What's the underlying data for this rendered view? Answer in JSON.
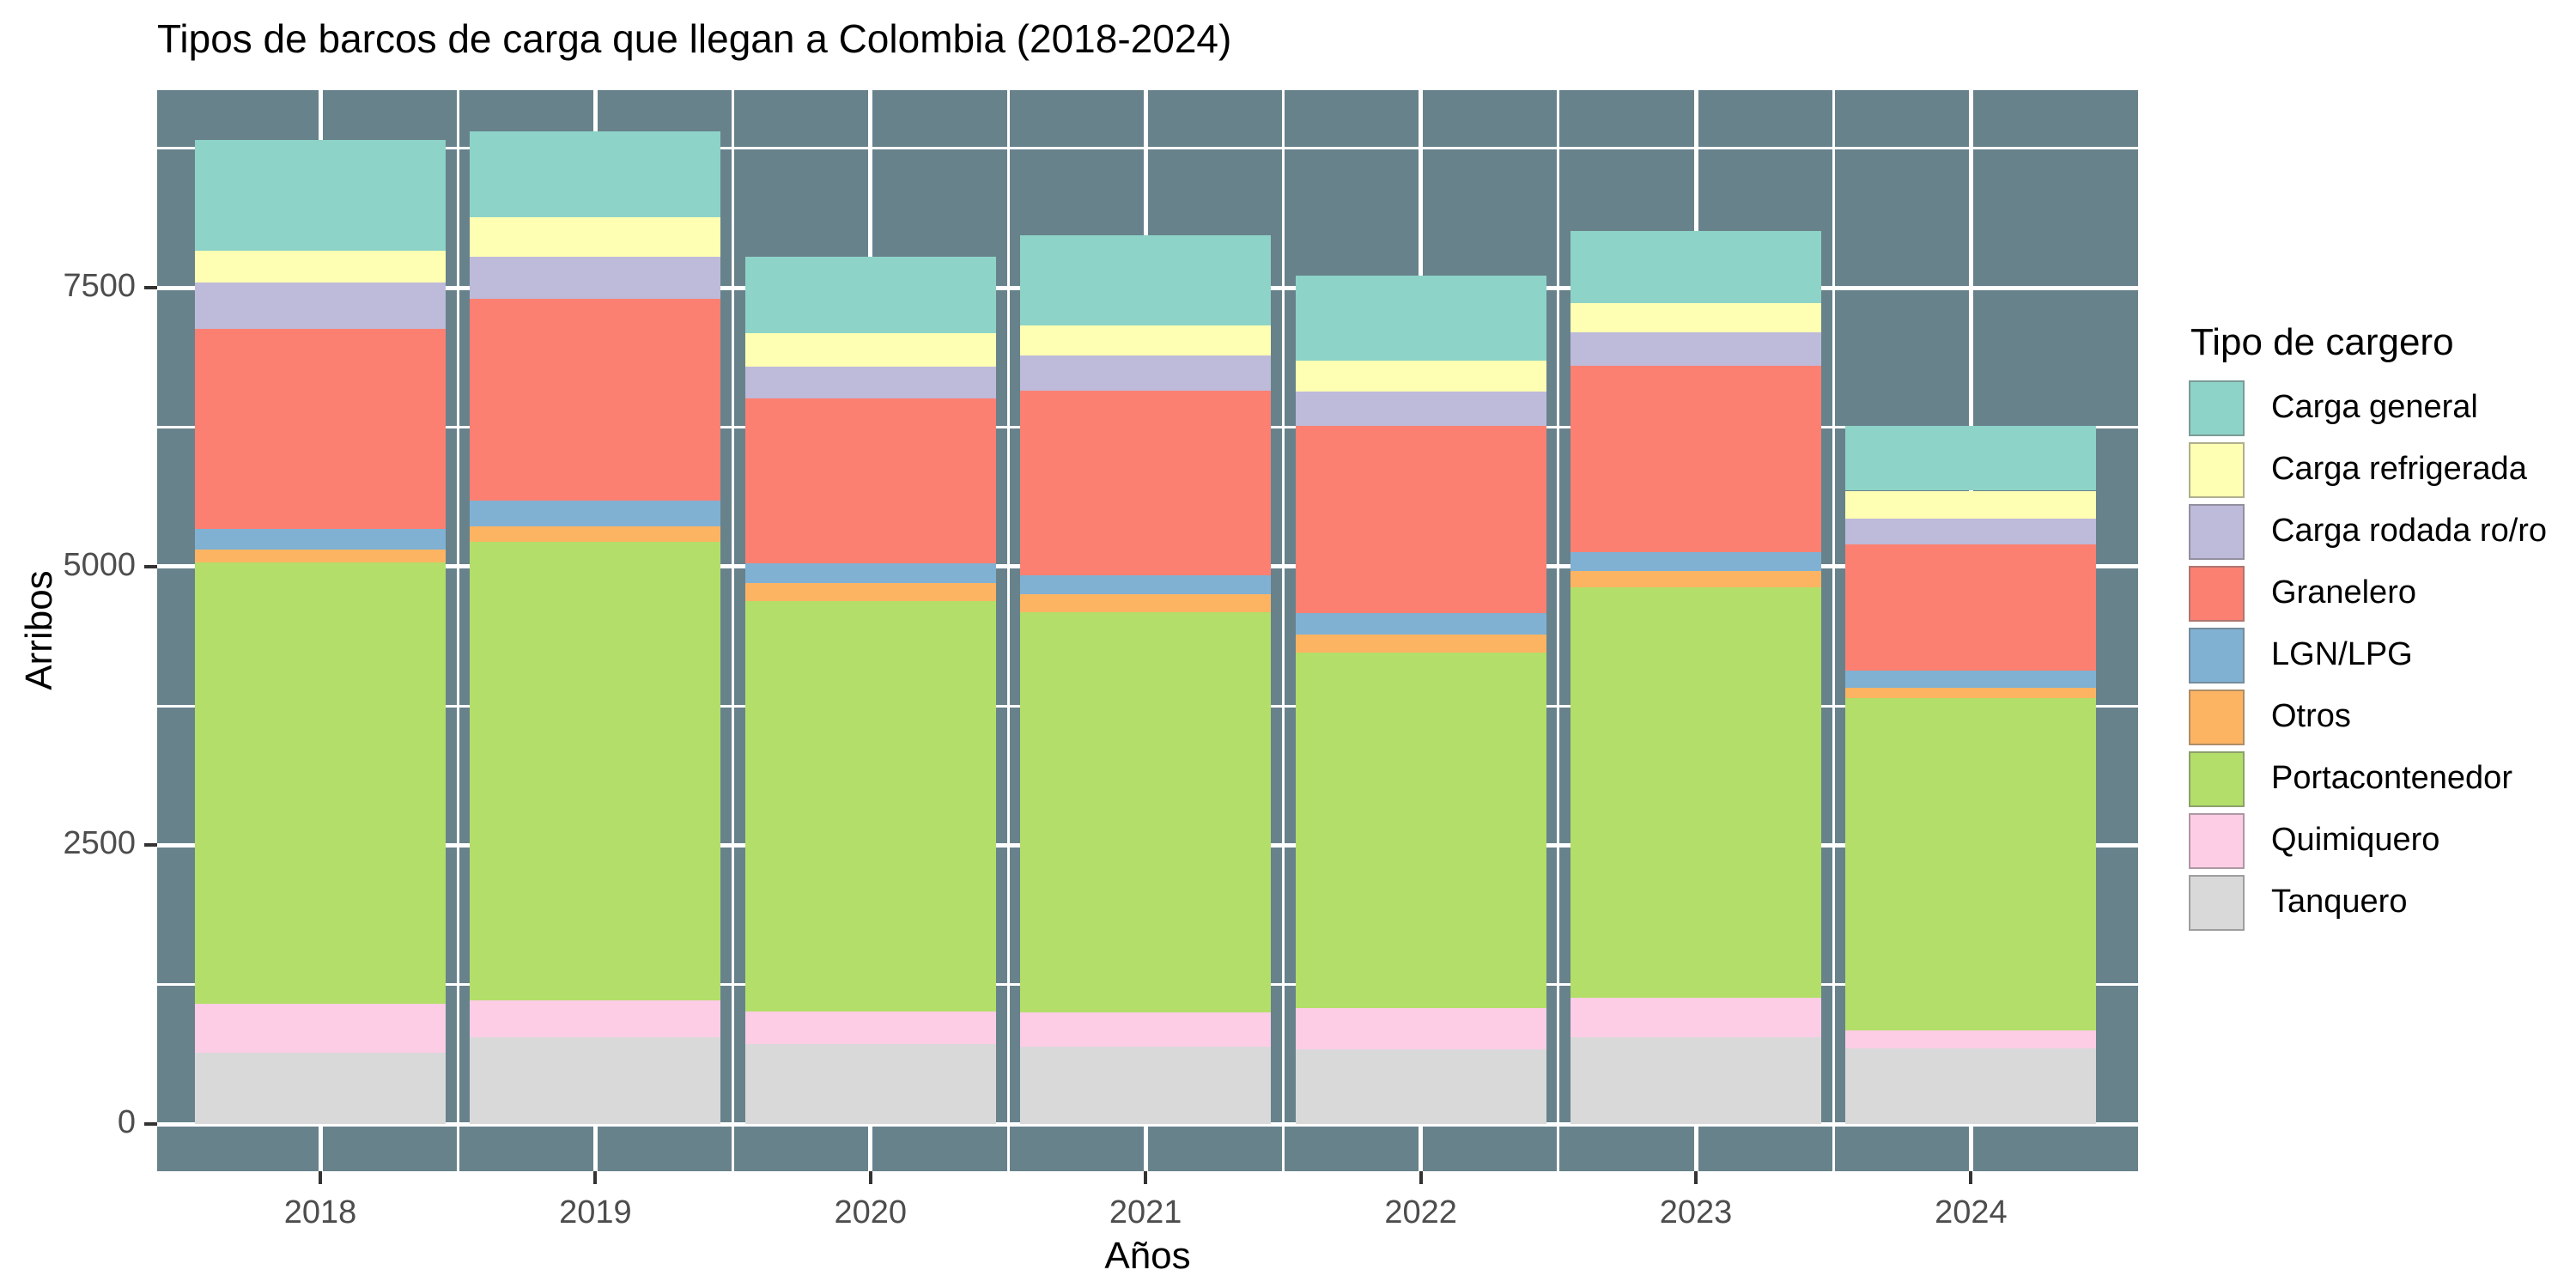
{
  "title": "Tipos de barcos de carga que llegan a Colombia (2018-2024)",
  "chart_data": {
    "type": "bar",
    "stacked": true,
    "stack_order": "first-series-on-top",
    "title": "Tipos de barcos de carga que llegan a Colombia (2018-2024)",
    "xlabel": "Años",
    "ylabel": "Arribos",
    "legend_title": "Tipo de cargero",
    "legend_position": "right",
    "categories": [
      "2018",
      "2019",
      "2020",
      "2021",
      "2022",
      "2023",
      "2024"
    ],
    "series": [
      {
        "name": "Carga general",
        "color": "#8DD3C7",
        "values": [
          1000,
          770,
          690,
          810,
          760,
          650,
          580
        ]
      },
      {
        "name": "Carga refrigerada",
        "color": "#FFFFB3",
        "values": [
          280,
          350,
          300,
          270,
          280,
          260,
          250
        ]
      },
      {
        "name": "Carga rodada ro/ro",
        "color": "#BEBADA",
        "values": [
          420,
          380,
          280,
          310,
          310,
          300,
          230
        ]
      },
      {
        "name": "Granelero",
        "color": "#FB8072",
        "values": [
          1790,
          1810,
          1480,
          1660,
          1680,
          1670,
          1130
        ]
      },
      {
        "name": "LGN/LPG",
        "color": "#80B1D3",
        "values": [
          190,
          230,
          180,
          170,
          190,
          170,
          160
        ]
      },
      {
        "name": "Otros",
        "color": "#FDB462",
        "values": [
          110,
          140,
          160,
          160,
          160,
          150,
          90
        ]
      },
      {
        "name": "Portacontenedor",
        "color": "#B3DE69",
        "values": [
          3960,
          4110,
          3680,
          3590,
          3190,
          3680,
          2980
        ]
      },
      {
        "name": "Quimiquero",
        "color": "#FCCDE5",
        "values": [
          440,
          330,
          290,
          310,
          370,
          350,
          160
        ]
      },
      {
        "name": "Tanquero",
        "color": "#D9D9D9",
        "values": [
          640,
          780,
          720,
          690,
          670,
          780,
          680
        ]
      }
    ],
    "y_major_ticks": [
      0,
      2500,
      5000,
      7500
    ],
    "y_minor_gridlines": [
      1250,
      3750,
      6250,
      8750
    ],
    "ylim": [
      -450,
      9290
    ],
    "grid": {
      "major": true,
      "minor": true,
      "color": "#ffffff"
    },
    "panel_background": "#68828C",
    "tick_color": "#333333",
    "tick_label_color": "#4d4d4d"
  }
}
